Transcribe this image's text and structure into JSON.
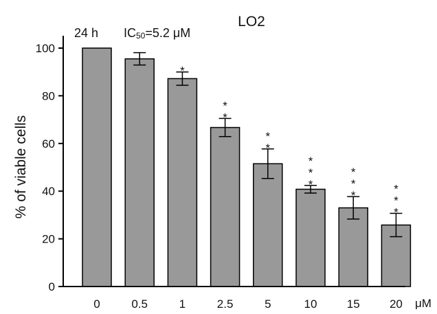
{
  "chart_data": {
    "type": "bar",
    "title": "LO2",
    "annotation": {
      "time": "24 h",
      "ic_prefix": "IC",
      "ic_subscript": "50",
      "ic_value": "=5.2 μM"
    },
    "ylabel": "% of viable cells",
    "xunit": "μM",
    "categories": [
      "0",
      "0.5",
      "1",
      "2.5",
      "5",
      "10",
      "15",
      "20"
    ],
    "values": [
      100,
      95.5,
      87.2,
      66.7,
      51.5,
      40.8,
      33.0,
      25.8
    ],
    "errors": [
      0,
      2.6,
      2.8,
      3.8,
      6.2,
      1.6,
      4.7,
      4.9
    ],
    "significance": [
      "",
      "",
      "*",
      "**",
      "**",
      "***",
      "***",
      "***"
    ],
    "yticks": [
      0,
      20,
      40,
      60,
      80,
      100
    ],
    "ylim": [
      0,
      100
    ],
    "bar_color": "#999999",
    "grid": false
  }
}
